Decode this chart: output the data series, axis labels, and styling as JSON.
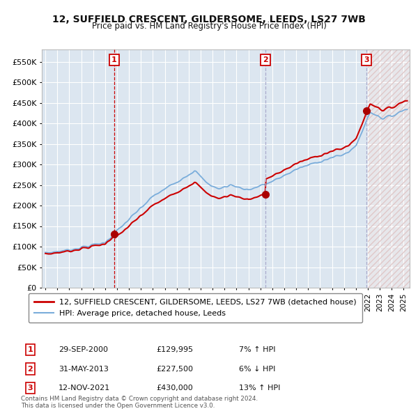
{
  "title": "12, SUFFIELD CRESCENT, GILDERSOME, LEEDS, LS27 7WB",
  "subtitle": "Price paid vs. HM Land Registry's House Price Index (HPI)",
  "background_color": "#ffffff",
  "plot_bg_color": "#dce6f0",
  "grid_color": "#ffffff",
  "ylim": [
    0,
    580000
  ],
  "yticks": [
    0,
    50000,
    100000,
    150000,
    200000,
    250000,
    300000,
    350000,
    400000,
    450000,
    500000,
    550000
  ],
  "ytick_labels": [
    "£0",
    "£50K",
    "£100K",
    "£150K",
    "£200K",
    "£250K",
    "£300K",
    "£350K",
    "£400K",
    "£450K",
    "£500K",
    "£550K"
  ],
  "xmin": 1994.7,
  "xmax": 2025.5,
  "hatch_start": 2022.0,
  "sale_points": [
    {
      "date_num": 2000.75,
      "price": 129995,
      "label": "1",
      "line_style": "dashed_red"
    },
    {
      "date_num": 2013.42,
      "price": 227500,
      "label": "2",
      "line_style": "dashed_gray"
    },
    {
      "date_num": 2021.87,
      "price": 430000,
      "label": "3",
      "line_style": "dashed_gray"
    }
  ],
  "sale_labels": [
    {
      "label": "1",
      "date": "29-SEP-2000",
      "price": "£129,995",
      "pct": "7%",
      "dir": "↑",
      "note": "HPI"
    },
    {
      "label": "2",
      "date": "31-MAY-2013",
      "price": "£227,500",
      "pct": "6%",
      "dir": "↓",
      "note": "HPI"
    },
    {
      "label": "3",
      "date": "12-NOV-2021",
      "price": "£430,000",
      "pct": "13%",
      "dir": "↑",
      "note": "HPI"
    }
  ],
  "legend_entries": [
    {
      "label": "12, SUFFIELD CRESCENT, GILDERSOME, LEEDS, LS27 7WB (detached house)",
      "color": "#cc0000",
      "lw": 2
    },
    {
      "label": "HPI: Average price, detached house, Leeds",
      "color": "#7aaddb",
      "lw": 1.5
    }
  ],
  "footer": [
    "Contains HM Land Registry data © Crown copyright and database right 2024.",
    "This data is licensed under the Open Government Licence v3.0."
  ],
  "hpi_color": "#7aaddb",
  "red_color": "#cc0000",
  "sale_line_color_red": "#cc0000",
  "sale_line_color_gray": "#aaaacc",
  "sale_marker_color": "#aa0000",
  "sale_box_color": "#cc0000"
}
